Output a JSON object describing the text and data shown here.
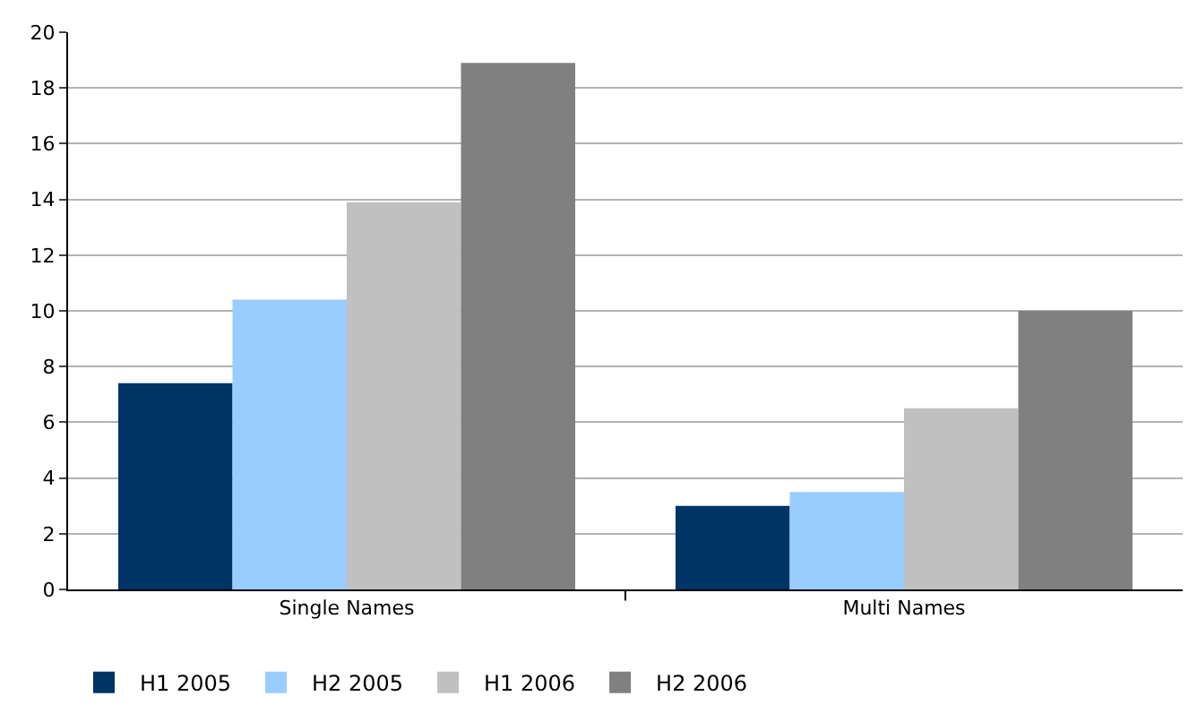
{
  "chart_data": {
    "type": "bar",
    "categories": [
      "Single Names",
      "Multi Names"
    ],
    "series": [
      {
        "name": "H1 2005",
        "color": "#003366",
        "values": [
          7.4,
          3.0
        ]
      },
      {
        "name": "H2 2005",
        "color": "#99ccff",
        "values": [
          10.4,
          3.5
        ]
      },
      {
        "name": "H1 2006",
        "color": "#c0c0c0",
        "values": [
          13.9,
          6.5
        ]
      },
      {
        "name": "H2 2006",
        "color": "#808080",
        "values": [
          18.9,
          10.0
        ]
      }
    ],
    "ylim": [
      0,
      20
    ],
    "yticks": [
      0,
      2,
      4,
      6,
      8,
      10,
      12,
      14,
      16,
      18,
      20
    ],
    "grid": "y",
    "legend": "bottom left"
  }
}
